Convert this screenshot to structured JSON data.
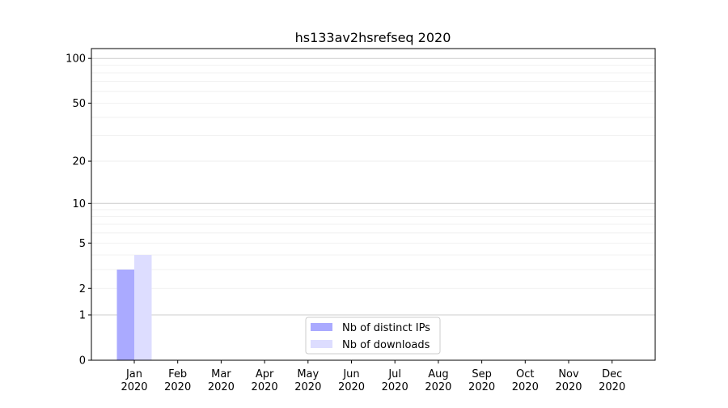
{
  "chart_data": {
    "type": "bar",
    "title": "hs133av2hsrefseq 2020",
    "xlabel": "",
    "ylabel": "",
    "y_scale": "symlog",
    "ylim": [
      0,
      110
    ],
    "y_ticks": [
      0,
      1,
      2,
      5,
      10,
      20,
      50,
      100
    ],
    "y_tick_labels": [
      "0",
      "1",
      "2",
      "5",
      "10",
      "20",
      "50",
      "100"
    ],
    "grid": true,
    "legend_position": "bottom-center",
    "categories": [
      "Jan\n2020",
      "Feb\n2020",
      "Mar\n2020",
      "Apr\n2020",
      "May\n2020",
      "Jun\n2020",
      "Jul\n2020",
      "Aug\n2020",
      "Sep\n2020",
      "Oct\n2020",
      "Nov\n2020",
      "Dec\n2020"
    ],
    "series": [
      {
        "name": "Nb of distinct IPs",
        "color": "#aaaaff",
        "values": [
          3,
          0,
          0,
          0,
          0,
          0,
          0,
          0,
          0,
          0,
          0,
          0
        ]
      },
      {
        "name": "Nb of downloads",
        "color": "#ddddff",
        "values": [
          4,
          0,
          0,
          0,
          0,
          0,
          0,
          0,
          0,
          0,
          0,
          0
        ]
      }
    ]
  }
}
